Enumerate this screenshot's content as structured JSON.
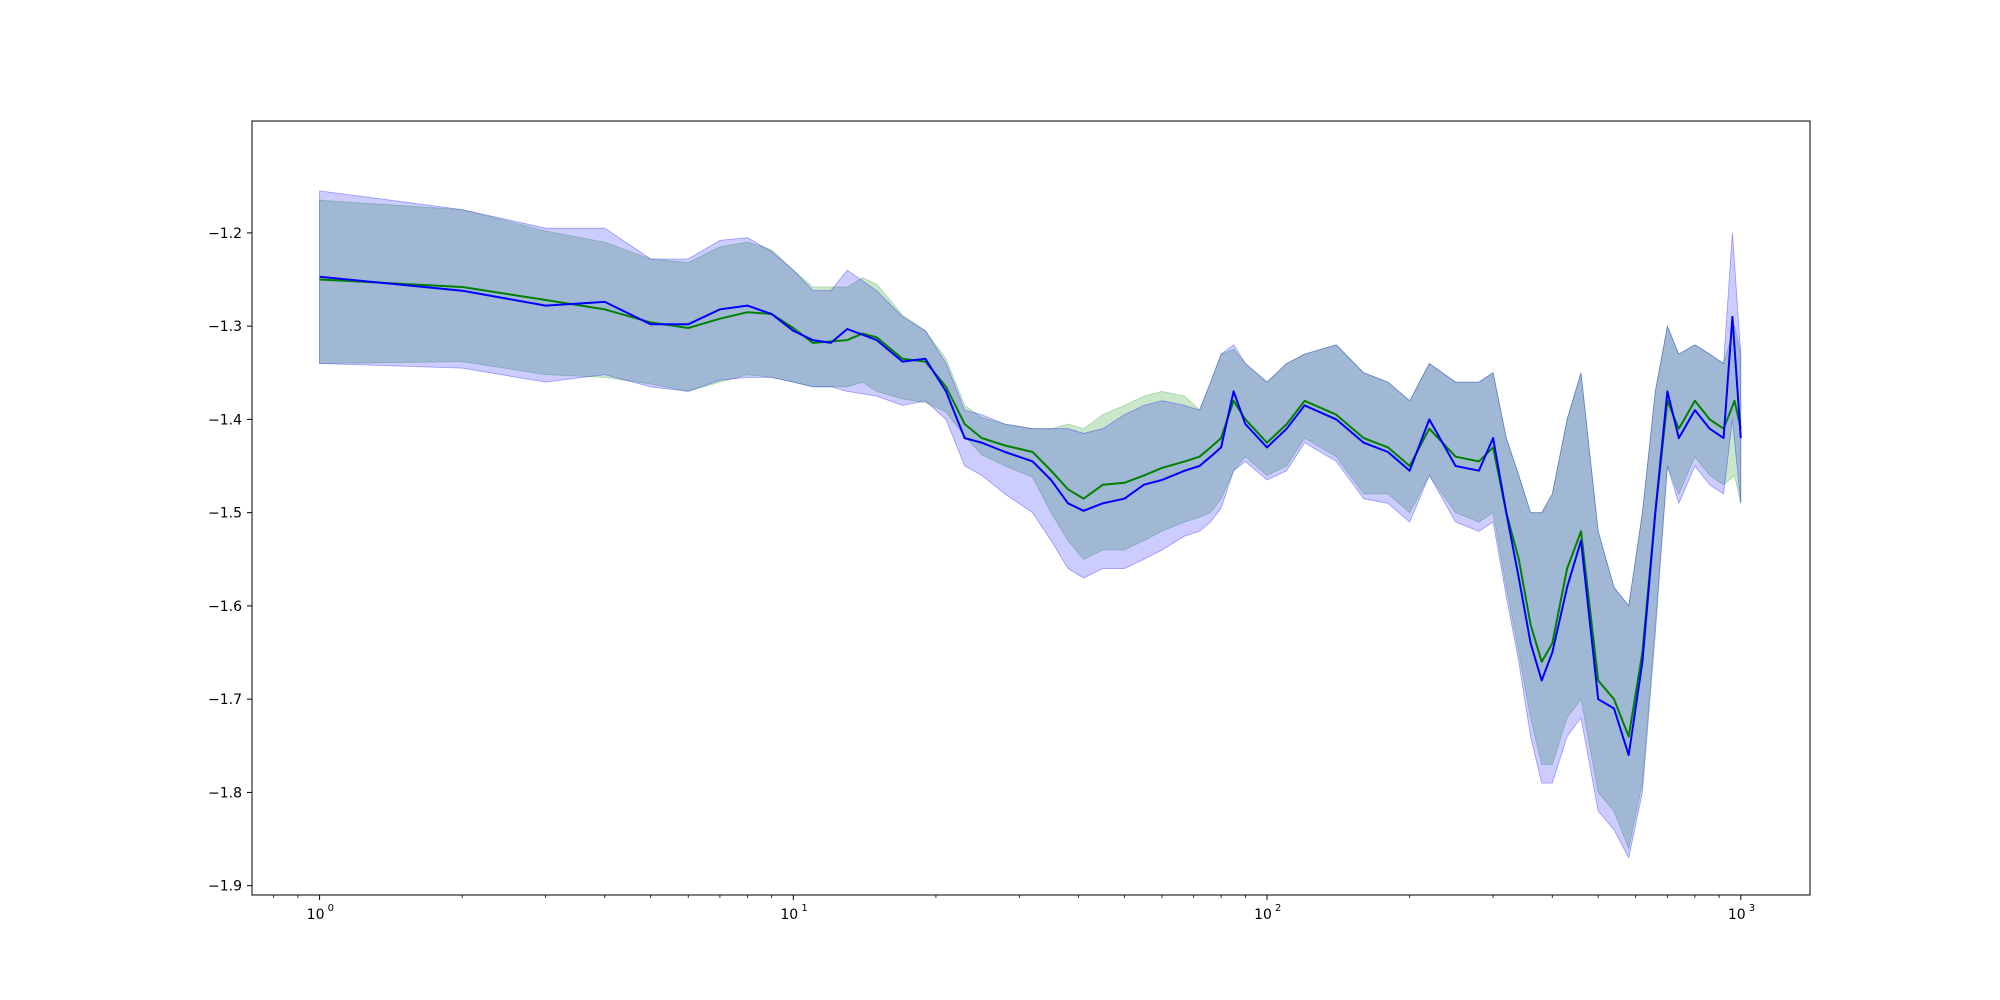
{
  "chart_data": {
    "type": "line",
    "title": "",
    "xlabel": "",
    "ylabel": "",
    "xscale": "log",
    "xlim": [
      0.72,
      1400
    ],
    "ylim": [
      -1.91,
      -1.08
    ],
    "grid": false,
    "legend": "none",
    "x_ticks": [
      {
        "value": 1,
        "base": "10",
        "exp": "0"
      },
      {
        "value": 10,
        "base": "10",
        "exp": "1"
      },
      {
        "value": 100,
        "base": "10",
        "exp": "2"
      },
      {
        "value": 1000,
        "base": "10",
        "exp": "3"
      }
    ],
    "y_ticks": [
      {
        "value": -1.2,
        "label": "−1.2"
      },
      {
        "value": -1.3,
        "label": "−1.3"
      },
      {
        "value": -1.4,
        "label": "−1.4"
      },
      {
        "value": -1.5,
        "label": "−1.5"
      },
      {
        "value": -1.6,
        "label": "−1.6"
      },
      {
        "value": -1.7,
        "label": "−1.7"
      },
      {
        "value": -1.8,
        "label": "−1.8"
      },
      {
        "value": -1.9,
        "label": "−1.9"
      }
    ],
    "series": [
      {
        "color": "#008000",
        "band_color": "#2ca02c",
        "band_opacity": 0.25,
        "points": [
          [
            1,
            -1.25,
            -1.165,
            -1.34
          ],
          [
            2,
            -1.258,
            -1.175,
            -1.338
          ],
          [
            3,
            -1.272,
            -1.198,
            -1.352
          ],
          [
            4,
            -1.282,
            -1.21,
            -1.355
          ],
          [
            5,
            -1.296,
            -1.228,
            -1.362
          ],
          [
            6,
            -1.302,
            -1.232,
            -1.37
          ],
          [
            7,
            -1.292,
            -1.215,
            -1.36
          ],
          [
            8,
            -1.285,
            -1.21,
            -1.352
          ],
          [
            9,
            -1.287,
            -1.218,
            -1.355
          ],
          [
            10,
            -1.302,
            -1.24,
            -1.36
          ],
          [
            11,
            -1.318,
            -1.258,
            -1.365
          ],
          [
            13,
            -1.315,
            -1.258,
            -1.365
          ],
          [
            14,
            -1.308,
            -1.248,
            -1.36
          ],
          [
            15,
            -1.312,
            -1.255,
            -1.37
          ],
          [
            17,
            -1.335,
            -1.288,
            -1.378
          ],
          [
            19,
            -1.338,
            -1.305,
            -1.382
          ],
          [
            21,
            -1.365,
            -1.335,
            -1.392
          ],
          [
            23,
            -1.405,
            -1.385,
            -1.418
          ],
          [
            25,
            -1.42,
            -1.398,
            -1.438
          ],
          [
            28,
            -1.428,
            -1.405,
            -1.45
          ],
          [
            32,
            -1.435,
            -1.41,
            -1.462
          ],
          [
            35,
            -1.455,
            -1.41,
            -1.5
          ],
          [
            38,
            -1.475,
            -1.405,
            -1.53
          ],
          [
            41,
            -1.485,
            -1.41,
            -1.55
          ],
          [
            45,
            -1.47,
            -1.395,
            -1.54
          ],
          [
            50,
            -1.468,
            -1.385,
            -1.54
          ],
          [
            55,
            -1.46,
            -1.375,
            -1.53
          ],
          [
            60,
            -1.452,
            -1.37,
            -1.52
          ],
          [
            67,
            -1.445,
            -1.375,
            -1.51
          ],
          [
            72,
            -1.44,
            -1.39,
            -1.505
          ],
          [
            76,
            -1.43,
            -1.36,
            -1.5
          ],
          [
            80,
            -1.42,
            -1.33,
            -1.485
          ],
          [
            85,
            -1.38,
            -1.325,
            -1.455
          ],
          [
            90,
            -1.4,
            -1.34,
            -1.44
          ],
          [
            100,
            -1.425,
            -1.36,
            -1.46
          ],
          [
            110,
            -1.405,
            -1.34,
            -1.45
          ],
          [
            120,
            -1.38,
            -1.33,
            -1.42
          ],
          [
            140,
            -1.395,
            -1.32,
            -1.44
          ],
          [
            160,
            -1.42,
            -1.35,
            -1.48
          ],
          [
            180,
            -1.43,
            -1.36,
            -1.48
          ],
          [
            200,
            -1.45,
            -1.38,
            -1.5
          ],
          [
            220,
            -1.41,
            -1.34,
            -1.46
          ],
          [
            250,
            -1.44,
            -1.36,
            -1.5
          ],
          [
            280,
            -1.445,
            -1.36,
            -1.51
          ],
          [
            300,
            -1.43,
            -1.35,
            -1.5
          ],
          [
            320,
            -1.5,
            -1.42,
            -1.58
          ],
          [
            340,
            -1.55,
            -1.46,
            -1.65
          ],
          [
            360,
            -1.62,
            -1.5,
            -1.72
          ],
          [
            380,
            -1.66,
            -1.5,
            -1.77
          ],
          [
            400,
            -1.64,
            -1.48,
            -1.77
          ],
          [
            430,
            -1.56,
            -1.4,
            -1.72
          ],
          [
            460,
            -1.52,
            -1.35,
            -1.7
          ],
          [
            500,
            -1.68,
            -1.52,
            -1.8
          ],
          [
            540,
            -1.7,
            -1.58,
            -1.82
          ],
          [
            580,
            -1.74,
            -1.6,
            -1.86
          ],
          [
            620,
            -1.65,
            -1.5,
            -1.79
          ],
          [
            660,
            -1.5,
            -1.37,
            -1.62
          ],
          [
            700,
            -1.38,
            -1.3,
            -1.45
          ],
          [
            740,
            -1.41,
            -1.33,
            -1.48
          ],
          [
            800,
            -1.38,
            -1.32,
            -1.44
          ],
          [
            860,
            -1.4,
            -1.33,
            -1.46
          ],
          [
            920,
            -1.41,
            -1.34,
            -1.47
          ],
          [
            970,
            -1.38,
            -1.3,
            -1.46
          ],
          [
            1000,
            -1.41,
            -1.33,
            -1.49
          ]
        ]
      },
      {
        "color": "#0000ff",
        "band_color": "#0000ff",
        "band_opacity": 0.2,
        "points": [
          [
            1,
            -1.247,
            -1.155,
            -1.34
          ],
          [
            2,
            -1.262,
            -1.175,
            -1.345
          ],
          [
            3,
            -1.278,
            -1.195,
            -1.36
          ],
          [
            4,
            -1.274,
            -1.195,
            -1.352
          ],
          [
            5,
            -1.298,
            -1.228,
            -1.365
          ],
          [
            6,
            -1.298,
            -1.228,
            -1.37
          ],
          [
            7,
            -1.282,
            -1.208,
            -1.358
          ],
          [
            8,
            -1.278,
            -1.205,
            -1.355
          ],
          [
            9,
            -1.287,
            -1.22,
            -1.355
          ],
          [
            10,
            -1.305,
            -1.24,
            -1.36
          ],
          [
            11,
            -1.315,
            -1.262,
            -1.365
          ],
          [
            12,
            -1.318,
            -1.262,
            -1.365
          ],
          [
            13,
            -1.303,
            -1.24,
            -1.37
          ],
          [
            15,
            -1.315,
            -1.262,
            -1.375
          ],
          [
            17,
            -1.338,
            -1.29,
            -1.385
          ],
          [
            19,
            -1.335,
            -1.305,
            -1.38
          ],
          [
            21,
            -1.37,
            -1.34,
            -1.4
          ],
          [
            23,
            -1.42,
            -1.39,
            -1.45
          ],
          [
            25,
            -1.425,
            -1.395,
            -1.46
          ],
          [
            28,
            -1.435,
            -1.405,
            -1.48
          ],
          [
            32,
            -1.445,
            -1.41,
            -1.5
          ],
          [
            35,
            -1.465,
            -1.41,
            -1.53
          ],
          [
            38,
            -1.49,
            -1.41,
            -1.56
          ],
          [
            41,
            -1.498,
            -1.415,
            -1.57
          ],
          [
            45,
            -1.49,
            -1.41,
            -1.56
          ],
          [
            50,
            -1.485,
            -1.395,
            -1.56
          ],
          [
            55,
            -1.47,
            -1.385,
            -1.55
          ],
          [
            60,
            -1.465,
            -1.38,
            -1.54
          ],
          [
            67,
            -1.455,
            -1.385,
            -1.525
          ],
          [
            72,
            -1.45,
            -1.39,
            -1.52
          ],
          [
            76,
            -1.44,
            -1.36,
            -1.51
          ],
          [
            80,
            -1.43,
            -1.33,
            -1.495
          ],
          [
            85,
            -1.37,
            -1.32,
            -1.455
          ],
          [
            90,
            -1.405,
            -1.34,
            -1.445
          ],
          [
            100,
            -1.43,
            -1.36,
            -1.465
          ],
          [
            110,
            -1.41,
            -1.34,
            -1.455
          ],
          [
            120,
            -1.385,
            -1.33,
            -1.425
          ],
          [
            140,
            -1.4,
            -1.32,
            -1.445
          ],
          [
            160,
            -1.425,
            -1.35,
            -1.485
          ],
          [
            180,
            -1.435,
            -1.36,
            -1.49
          ],
          [
            200,
            -1.455,
            -1.38,
            -1.51
          ],
          [
            220,
            -1.4,
            -1.34,
            -1.46
          ],
          [
            250,
            -1.45,
            -1.36,
            -1.51
          ],
          [
            280,
            -1.455,
            -1.36,
            -1.52
          ],
          [
            300,
            -1.42,
            -1.35,
            -1.51
          ],
          [
            320,
            -1.5,
            -1.42,
            -1.59
          ],
          [
            340,
            -1.57,
            -1.46,
            -1.66
          ],
          [
            360,
            -1.64,
            -1.5,
            -1.74
          ],
          [
            380,
            -1.68,
            -1.5,
            -1.79
          ],
          [
            400,
            -1.65,
            -1.48,
            -1.79
          ],
          [
            430,
            -1.58,
            -1.4,
            -1.74
          ],
          [
            460,
            -1.53,
            -1.35,
            -1.72
          ],
          [
            500,
            -1.7,
            -1.52,
            -1.82
          ],
          [
            540,
            -1.71,
            -1.58,
            -1.84
          ],
          [
            580,
            -1.76,
            -1.6,
            -1.87
          ],
          [
            620,
            -1.66,
            -1.5,
            -1.8
          ],
          [
            660,
            -1.5,
            -1.37,
            -1.63
          ],
          [
            700,
            -1.37,
            -1.3,
            -1.45
          ],
          [
            740,
            -1.42,
            -1.33,
            -1.49
          ],
          [
            800,
            -1.39,
            -1.32,
            -1.45
          ],
          [
            860,
            -1.41,
            -1.33,
            -1.47
          ],
          [
            920,
            -1.42,
            -1.34,
            -1.48
          ],
          [
            960,
            -1.29,
            -1.2,
            -1.4
          ],
          [
            1000,
            -1.42,
            -1.33,
            -1.49
          ]
        ]
      }
    ]
  }
}
